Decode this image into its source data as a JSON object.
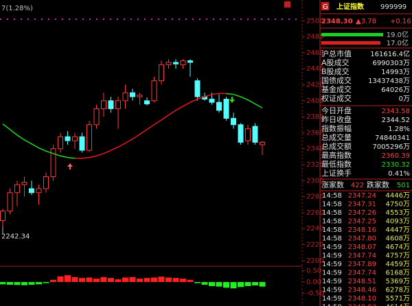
{
  "chart_data": {
    "type": "candlestick",
    "title": "7(1.28%)",
    "open": [
      2250,
      2262,
      2285,
      2295,
      2290,
      2285,
      2290,
      2305,
      2340,
      2355,
      2350,
      2355,
      2338,
      2370,
      2390,
      2400,
      2390,
      2400,
      2410,
      2405,
      2400,
      2400,
      2425,
      2445,
      2448,
      2445,
      2450,
      2425,
      2405,
      2402,
      2398,
      2402,
      2378,
      2370,
      2350,
      2368,
      2345
    ],
    "high": [
      2265,
      2290,
      2300,
      2305,
      2300,
      2295,
      2310,
      2345,
      2360,
      2362,
      2360,
      2360,
      2375,
      2395,
      2410,
      2405,
      2405,
      2420,
      2415,
      2410,
      2404,
      2430,
      2450,
      2452,
      2452,
      2452,
      2452,
      2428,
      2410,
      2410,
      2408,
      2405,
      2385,
      2372,
      2370,
      2372,
      2350
    ],
    "low": [
      2242.34,
      2258,
      2268,
      2280,
      2282,
      2270,
      2285,
      2300,
      2335,
      2345,
      2340,
      2335,
      2336,
      2365,
      2380,
      2385,
      2365,
      2390,
      2400,
      2395,
      2394,
      2398,
      2420,
      2440,
      2440,
      2440,
      2430,
      2400,
      2400,
      2395,
      2385,
      2375,
      2365,
      2345,
      2345,
      2345,
      2332
    ],
    "close": [
      2262,
      2285,
      2295,
      2298,
      2285,
      2290,
      2305,
      2340,
      2355,
      2350,
      2355,
      2338,
      2370,
      2390,
      2400,
      2390,
      2400,
      2410,
      2405,
      2407,
      2396,
      2425,
      2445,
      2448,
      2446,
      2450,
      2448,
      2405,
      2402,
      2398,
      2388,
      2378,
      2370,
      2348,
      2365,
      2348,
      2348
    ],
    "up_color": "#ff3c3c",
    "down_color": "#54fcfc",
    "ma": {
      "values": [
        2371,
        2364,
        2357,
        2351,
        2346,
        2341,
        2337,
        2334,
        2331,
        2329,
        2328,
        2328,
        2329,
        2331,
        2334,
        2338,
        2342,
        2347,
        2352,
        2358,
        2364,
        2370,
        2376,
        2382,
        2388,
        2393,
        2398,
        2402,
        2405,
        2408,
        2409,
        2409,
        2408,
        2405,
        2401,
        2396,
        2391
      ],
      "up_color": "#e01818",
      "down_color": "#20d020"
    },
    "low_value": 2242.34,
    "ylim": [
      2193,
      2526
    ],
    "yticks": [
      2500,
      2480,
      2460,
      2440,
      2420,
      2400,
      2380,
      2360,
      2340,
      2320,
      2300,
      2280,
      2260,
      2240,
      2220,
      2200
    ],
    "indicator": {
      "values": [
        -0.1,
        -0.12,
        -0.13,
        -0.14,
        -0.12,
        -0.1,
        -0.05,
        0.1,
        0.25,
        0.3,
        0.22,
        0.18,
        0.2,
        0.15,
        0.22,
        0.18,
        0.12,
        0.2,
        0.22,
        0.15,
        0.18,
        0.2,
        0.24,
        0.2,
        0.18,
        0.15,
        0.1,
        -0.05,
        -0.12,
        -0.18,
        -0.2,
        -0.25,
        -0.28,
        -0.22,
        -0.18,
        -0.15,
        -0.2
      ],
      "ylim": [
        -1.06,
        0.7
      ],
      "yticks": [
        {
          "value": 0.5,
          "label": "0.50"
        },
        {
          "value": 0,
          "label": "0.00"
        },
        {
          "value": -0.5,
          "label": "-0.50"
        }
      ],
      "up_color": "#ff2020",
      "down_color": "#20f020"
    }
  },
  "quote": {
    "badge": "G",
    "name": "上证指数",
    "code": "999999",
    "price": "2348.30",
    "change": "▲3.78",
    "change_pct": "+0.16",
    "bars": [
      {
        "label": "19.0亿",
        "color": "#20d020"
      },
      {
        "label": "17.0亿",
        "color": "#e02020"
      }
    ],
    "summary": [
      [
        "沪总市值",
        "161616.4亿"
      ],
      [
        "A股成交",
        "6990303万"
      ],
      [
        "B股成交",
        "14993万"
      ],
      [
        "国债成交",
        "13437438万"
      ],
      [
        "基金成交",
        "64026万"
      ],
      [
        "权证成交",
        "0万"
      ]
    ],
    "stats": [
      {
        "label": "今日开盘",
        "value": "2343.58",
        "color": "#ff4040"
      },
      {
        "label": "昨日收盘",
        "value": "2344.52",
        "color": "#e8e8e8"
      },
      {
        "label": "指数振幅",
        "value": "1.28%",
        "color": "#e8e8e8"
      },
      {
        "label": "总成交量",
        "value": "74840341",
        "color": "#e8e8e8"
      },
      {
        "label": "总成交额",
        "value": "7005296万",
        "color": "#e8e8e8"
      },
      {
        "label": "最高指数",
        "value": "2360.39",
        "color": "#ff4040"
      },
      {
        "label": "最低指数",
        "value": "2330.32",
        "color": "#20e020"
      },
      {
        "label": "上证换手",
        "value": "0.41%",
        "color": "#e8e8e8"
      }
    ],
    "breadth": {
      "up_label": "涨家数",
      "up": "422",
      "down_label": "跌家数",
      "down": "501"
    },
    "ticks": [
      [
        "14:58",
        "2347.24",
        "4446万"
      ],
      [
        "14:58",
        "2347.31",
        "4750万"
      ],
      [
        "14:58",
        "2347.26",
        "4553万"
      ],
      [
        "14:58",
        "2347.25",
        "4093万"
      ],
      [
        "14:58",
        "2348.16",
        "4447万"
      ],
      [
        "14:58",
        "2347.80",
        "4608万"
      ],
      [
        "14:59",
        "2348.07",
        "4674万"
      ],
      [
        "14:59",
        "2347.74",
        "4757万"
      ],
      [
        "14:59",
        "2347.89",
        "4459万"
      ],
      [
        "14:59",
        "2347.74",
        "6168万"
      ],
      [
        "14:59",
        "2348.51",
        "5369万"
      ],
      [
        "14:59",
        "2348.46",
        "6278万"
      ],
      [
        "14:59",
        "2348.10",
        "5571万"
      ],
      [
        "14:59",
        "2348.93",
        "4614万"
      ]
    ]
  }
}
